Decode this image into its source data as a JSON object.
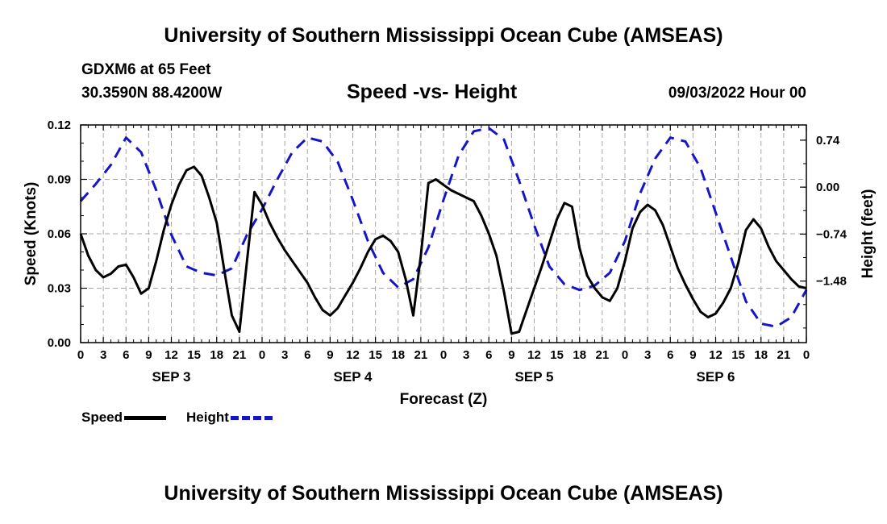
{
  "header": {
    "title": "University of Southern Mississippi Ocean Cube (AMSEAS)",
    "station": "GDXM6 at 65 Feet",
    "coords": "30.3590N  88.4200W",
    "subtitle": "Speed -vs- Height",
    "datetime": "09/03/2022 Hour 00"
  },
  "footer": {
    "title": "University of Southern Mississippi Ocean Cube (AMSEAS)"
  },
  "legend": {
    "speed_label": "Speed",
    "height_label": "Height"
  },
  "chart_data": {
    "type": "line",
    "title": "Speed -vs- Height",
    "xlabel": "Forecast (Z)",
    "ylabel_left": "Speed (Knots)",
    "ylabel_right": "Height (feet)",
    "x_unit": "hours from 09/03/2022 00Z",
    "x_range": [
      0,
      96
    ],
    "x_tick_labels": [
      "0",
      "3",
      "6",
      "9",
      "12",
      "15",
      "18",
      "21",
      "0",
      "3",
      "6",
      "9",
      "12",
      "15",
      "18",
      "21",
      "0",
      "3",
      "6",
      "9",
      "12",
      "15",
      "18",
      "21",
      "0",
      "3",
      "6",
      "9",
      "12",
      "15",
      "18",
      "21",
      "0"
    ],
    "day_labels": [
      "SEP 3",
      "SEP 4",
      "SEP 5",
      "SEP 6"
    ],
    "ylim_left": [
      0,
      0.12
    ],
    "yticks_left": [
      "0.00",
      "0.03",
      "0.06",
      "0.09",
      "0.12"
    ],
    "ylim_right": [
      -2.45,
      0.98
    ],
    "yticks_right": [
      {
        "value": 0.74,
        "label": "0.74"
      },
      {
        "value": 0.0,
        "label": "0.00"
      },
      {
        "value": -0.74,
        "label": "−0.74"
      },
      {
        "value": -1.48,
        "label": "−1.48"
      }
    ],
    "grid": true,
    "legend_position": "bottom-left",
    "series": [
      {
        "name": "Speed",
        "axis": "left",
        "color": "#000000",
        "style": "solid",
        "x": [
          0,
          1,
          2,
          3,
          4,
          5,
          6,
          7,
          8,
          9,
          10,
          11,
          12,
          13,
          14,
          15,
          16,
          17,
          18,
          19,
          20,
          21,
          22,
          23,
          24,
          25,
          26,
          27,
          28,
          29,
          30,
          31,
          32,
          33,
          34,
          35,
          36,
          37,
          38,
          39,
          40,
          41,
          42,
          43,
          44,
          45,
          46,
          47,
          48,
          49,
          50,
          51,
          52,
          53,
          54,
          55,
          56,
          57,
          58,
          59,
          60,
          61,
          62,
          63,
          64,
          65,
          66,
          67,
          68,
          69,
          70,
          71,
          72,
          73,
          74,
          75,
          76,
          77,
          78,
          79,
          80,
          81,
          82,
          83,
          84,
          85,
          86,
          87,
          88,
          89,
          90,
          91,
          92,
          93,
          94,
          95,
          96
        ],
        "values": [
          0.06,
          0.048,
          0.04,
          0.036,
          0.038,
          0.042,
          0.043,
          0.036,
          0.027,
          0.03,
          0.045,
          0.062,
          0.076,
          0.087,
          0.095,
          0.097,
          0.092,
          0.08,
          0.066,
          0.04,
          0.015,
          0.006,
          0.045,
          0.083,
          0.076,
          0.066,
          0.058,
          0.051,
          0.045,
          0.039,
          0.033,
          0.025,
          0.018,
          0.015,
          0.019,
          0.026,
          0.033,
          0.041,
          0.05,
          0.057,
          0.059,
          0.056,
          0.05,
          0.035,
          0.015,
          0.048,
          0.088,
          0.09,
          0.087,
          0.084,
          0.082,
          0.08,
          0.078,
          0.07,
          0.06,
          0.048,
          0.028,
          0.005,
          0.006,
          0.018,
          0.03,
          0.042,
          0.055,
          0.068,
          0.077,
          0.075,
          0.052,
          0.037,
          0.03,
          0.025,
          0.023,
          0.03,
          0.045,
          0.063,
          0.072,
          0.076,
          0.073,
          0.065,
          0.053,
          0.041,
          0.032,
          0.024,
          0.017,
          0.014,
          0.016,
          0.022,
          0.03,
          0.044,
          0.062,
          0.068,
          0.063,
          0.053,
          0.045,
          0.04,
          0.035,
          0.031,
          0.03
        ]
      },
      {
        "name": "Height",
        "axis": "right",
        "color": "#1515c8",
        "style": "dashed",
        "x": [
          0,
          2,
          4,
          6,
          8,
          10,
          12,
          14,
          16,
          18,
          20,
          22,
          24,
          26,
          28,
          30,
          32,
          34,
          36,
          38,
          40,
          42,
          44,
          46,
          48,
          50,
          52,
          54,
          56,
          58,
          60,
          62,
          64,
          66,
          68,
          70,
          72,
          74,
          76,
          78,
          80,
          82,
          84,
          86,
          88,
          90,
          92,
          94,
          96
        ],
        "values": [
          -0.22,
          0.05,
          0.35,
          0.78,
          0.55,
          -0.05,
          -0.75,
          -1.25,
          -1.35,
          -1.39,
          -1.28,
          -0.75,
          -0.35,
          0.12,
          0.55,
          0.78,
          0.72,
          0.4,
          -0.2,
          -0.85,
          -1.35,
          -1.58,
          -1.45,
          -0.95,
          -0.2,
          0.5,
          0.88,
          0.93,
          0.75,
          0.1,
          -0.6,
          -1.25,
          -1.53,
          -1.62,
          -1.55,
          -1.35,
          -0.85,
          -0.1,
          0.45,
          0.78,
          0.72,
          0.3,
          -0.4,
          -1.1,
          -1.8,
          -2.15,
          -2.2,
          -2.05,
          -1.62
        ]
      }
    ]
  }
}
